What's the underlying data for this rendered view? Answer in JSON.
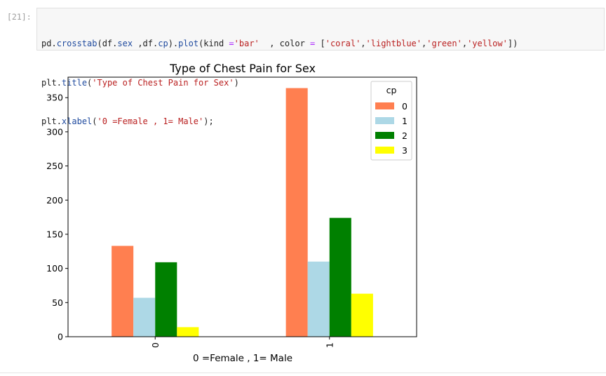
{
  "cell": {
    "prompt": "[21]:",
    "code": {
      "line1": [
        {
          "t": "pd",
          "c": "plain"
        },
        {
          "t": ".",
          "c": "plain"
        },
        {
          "t": "crosstab",
          "c": "attr"
        },
        {
          "t": "(df",
          "c": "plain"
        },
        {
          "t": ".",
          "c": "plain"
        },
        {
          "t": "sex",
          "c": "attr"
        },
        {
          "t": " ,df",
          "c": "plain"
        },
        {
          "t": ".",
          "c": "plain"
        },
        {
          "t": "cp",
          "c": "attr"
        },
        {
          "t": ")",
          "c": "plain"
        },
        {
          "t": ".",
          "c": "plain"
        },
        {
          "t": "plot",
          "c": "attr"
        },
        {
          "t": "(kind ",
          "c": "plain"
        },
        {
          "t": "=",
          "c": "op"
        },
        {
          "t": "'bar'",
          "c": "str"
        },
        {
          "t": "  , color ",
          "c": "plain"
        },
        {
          "t": "=",
          "c": "op"
        },
        {
          "t": " [",
          "c": "plain"
        },
        {
          "t": "'coral'",
          "c": "str"
        },
        {
          "t": ",",
          "c": "plain"
        },
        {
          "t": "'lightblue'",
          "c": "str"
        },
        {
          "t": ",",
          "c": "plain"
        },
        {
          "t": "'green'",
          "c": "str"
        },
        {
          "t": ",",
          "c": "plain"
        },
        {
          "t": "'yellow'",
          "c": "str"
        },
        {
          "t": "])",
          "c": "plain"
        }
      ],
      "line2": [
        {
          "t": "plt",
          "c": "plain"
        },
        {
          "t": ".",
          "c": "plain"
        },
        {
          "t": "title",
          "c": "attr"
        },
        {
          "t": "(",
          "c": "plain"
        },
        {
          "t": "'Type of Chest Pain for Sex'",
          "c": "str"
        },
        {
          "t": ")",
          "c": "plain"
        }
      ],
      "line3": [
        {
          "t": "plt",
          "c": "plain"
        },
        {
          "t": ".",
          "c": "plain"
        },
        {
          "t": "xlabel",
          "c": "attr"
        },
        {
          "t": "(",
          "c": "plain"
        },
        {
          "t": "'0 =Female , 1= Male'",
          "c": "str"
        },
        {
          "t": ");",
          "c": "plain"
        }
      ]
    }
  },
  "chart_data": {
    "type": "bar",
    "title": "Type of Chest Pain for Sex",
    "xlabel": "0 =Female , 1= Male",
    "ylabel": "",
    "categories": [
      "0",
      "1"
    ],
    "ylim": [
      0,
      380
    ],
    "yticks": [
      0,
      50,
      100,
      150,
      200,
      250,
      300,
      350
    ],
    "legend_title": "cp",
    "legend_position": "upper right",
    "grid": false,
    "series": [
      {
        "name": "0",
        "color": "#ff7f50",
        "values": [
          133,
          364
        ]
      },
      {
        "name": "1",
        "color": "#add8e6",
        "values": [
          57,
          110
        ]
      },
      {
        "name": "2",
        "color": "#008000",
        "values": [
          109,
          174
        ]
      },
      {
        "name": "3",
        "color": "#ffff00",
        "values": [
          14,
          63
        ]
      }
    ]
  }
}
